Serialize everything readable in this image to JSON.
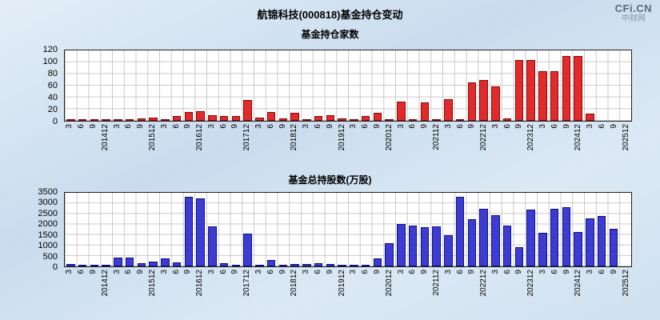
{
  "header": {
    "title": "航锦科技(000818)基金持仓变动",
    "logo_text": "CFi.CN",
    "logo_subtext": "中财网"
  },
  "chart_data": [
    {
      "type": "bar",
      "title": "基金持仓家数",
      "categories": [
        "3",
        "6",
        "9",
        "201412",
        "3",
        "6",
        "9",
        "201512",
        "3",
        "6",
        "9",
        "201612",
        "3",
        "6",
        "9",
        "201712",
        "3",
        "6",
        "9",
        "201812",
        "3",
        "6",
        "9",
        "201912",
        "3",
        "6",
        "9",
        "202012",
        "3",
        "6",
        "9",
        "202112",
        "3",
        "6",
        "9",
        "202212",
        "3",
        "6",
        "9",
        "202312",
        "3",
        "6",
        "9",
        "202412",
        "3",
        "6",
        "9",
        "202512"
      ],
      "values": [
        2,
        1,
        1,
        1,
        2,
        3,
        4,
        5,
        3,
        8,
        15,
        16,
        10,
        8,
        8,
        35,
        6,
        15,
        4,
        14,
        3,
        8,
        9,
        4,
        2,
        8,
        14,
        3,
        33,
        3,
        32,
        3,
        37,
        3,
        65,
        70,
        58,
        4,
        103,
        103,
        85,
        85,
        110,
        110,
        12,
        0,
        0,
        0
      ],
      "ylim": [
        0,
        120
      ],
      "yticks": [
        0,
        20,
        40,
        60,
        80,
        100,
        120
      ],
      "bar_fill": "#e22a2a",
      "bar_border": "#7d0e0e",
      "grid": true,
      "grid_color": "#c9c9c9",
      "legend": "none"
    },
    {
      "type": "bar",
      "title": "基金总持股数(万股)",
      "categories": [
        "3",
        "6",
        "9",
        "201412",
        "3",
        "6",
        "9",
        "201512",
        "3",
        "6",
        "9",
        "201612",
        "3",
        "6",
        "9",
        "201712",
        "3",
        "6",
        "9",
        "201812",
        "3",
        "6",
        "9",
        "201912",
        "3",
        "6",
        "9",
        "202012",
        "3",
        "6",
        "9",
        "202112",
        "3",
        "6",
        "9",
        "202212",
        "3",
        "6",
        "9",
        "202312",
        "3",
        "6",
        "9",
        "202412",
        "3",
        "6",
        "9",
        "202512"
      ],
      "values": [
        120,
        60,
        60,
        90,
        420,
        430,
        150,
        230,
        400,
        200,
        3300,
        3250,
        1900,
        150,
        60,
        1550,
        50,
        300,
        80,
        120,
        100,
        150,
        120,
        60,
        50,
        80,
        400,
        1100,
        2000,
        1950,
        1850,
        1900,
        1500,
        3300,
        2250,
        2750,
        2450,
        1950,
        900,
        2700,
        1600,
        2750,
        2800,
        1650,
        2300,
        2400,
        1800,
        0
      ],
      "ylim": [
        0,
        3500
      ],
      "yticks": [
        0,
        500,
        1000,
        1500,
        2000,
        2500,
        3000,
        3500
      ],
      "bar_fill": "#3c3cd2",
      "bar_border": "#10107e",
      "grid": true,
      "grid_color": "#c9c9c9",
      "legend": "none"
    }
  ]
}
